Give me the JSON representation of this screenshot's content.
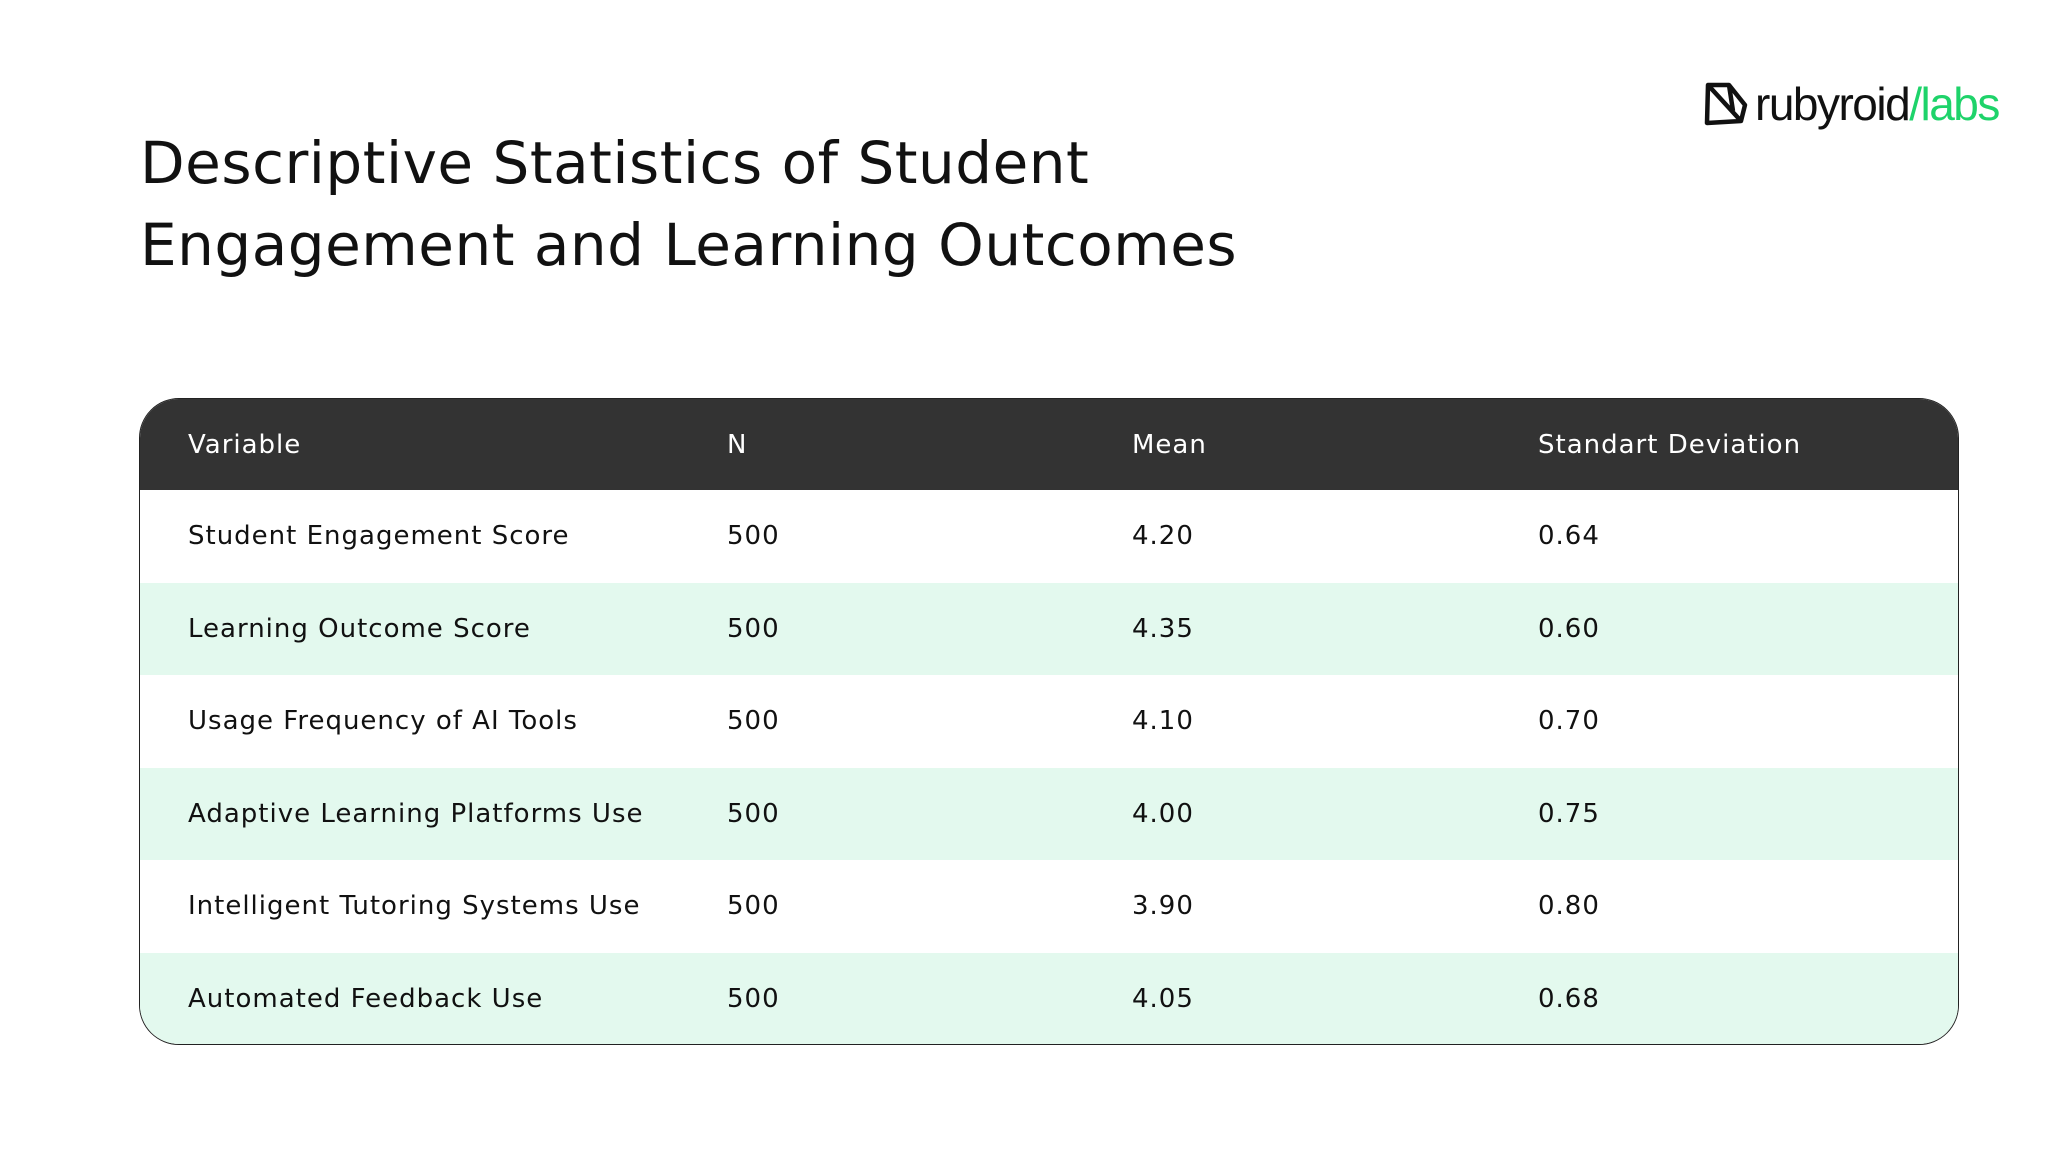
{
  "title": "Descriptive Statistics of Student Engagement and Learning Outcomes",
  "logo": {
    "part1": "rubyroid",
    "part2": "/labs",
    "accent": "#1ed36a"
  },
  "table": {
    "headers": [
      "Variable",
      "N",
      "Mean",
      "Standart Deviation"
    ],
    "rows": [
      [
        "Student Engagement Score",
        "500",
        "4.20",
        "0.64"
      ],
      [
        "Learning Outcome Score",
        "500",
        "4.35",
        "0.60"
      ],
      [
        "Usage Frequency of AI Tools",
        "500",
        "4.10",
        "0.70"
      ],
      [
        "Adaptive Learning Platforms Use",
        "500",
        "4.00",
        "0.75"
      ],
      [
        "Intelligent Tutoring Systems Use",
        "500",
        "3.90",
        "0.80"
      ],
      [
        "Automated Feedback Use",
        "500",
        "4.05",
        "0.68"
      ]
    ]
  }
}
